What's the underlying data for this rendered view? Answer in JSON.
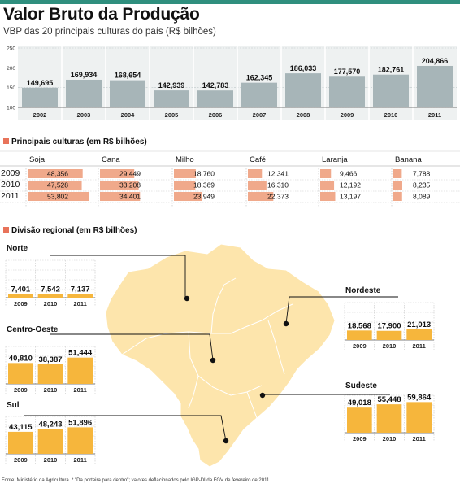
{
  "title": "Valor Bruto da Produção",
  "subtitle": "VBP das 20 principais culturas do país (R$ bilhões)",
  "section_crops": "Principais culturas (em R$ bilhões)",
  "section_regions": "Divisão regional (em R$ bilhões)",
  "footer": "Fonte: Ministério da Agricultura. * \"Da porteira para dentro\"; valores deflacionados pelo IGP-DI da FGV de fevereiro de 2011",
  "colors": {
    "accent_bar": "#2f8f7e",
    "gray_bar": "#a7b5b8",
    "orange_bar": "#f6b63c",
    "salmon_bar": "#f0a98b",
    "map_fill": "#fde5ac",
    "marker": "#e8735a"
  },
  "chart_data": [
    {
      "type": "bar",
      "title": "Valor Bruto da Produção",
      "subtitle": "VBP das 20 principais culturas do país (R$ bilhões)",
      "categories": [
        "2002",
        "2003",
        "2004",
        "2005",
        "2006",
        "2007",
        "2008",
        "2009",
        "2010",
        "2011"
      ],
      "values": [
        149.695,
        169.934,
        168.654,
        142.939,
        142.783,
        162.345,
        186.033,
        177.57,
        182.761,
        204.866
      ],
      "value_labels": [
        "149,695",
        "169,934",
        "168,654",
        "142,939",
        "142,783",
        "162,345",
        "186,033",
        "177,570",
        "182,761",
        "204,866"
      ],
      "y_ticks": [
        "250",
        "200",
        "150",
        "100"
      ],
      "ylim": [
        100,
        250
      ],
      "grid": true
    },
    {
      "type": "bar",
      "title": "Principais culturas (em R$ bilhões)",
      "categories": [
        "2009",
        "2010",
        "2011"
      ],
      "series": [
        {
          "name": "Soja",
          "values": [
            48.356,
            47.528,
            53.802
          ],
          "labels": [
            "48,356",
            "47,528",
            "53,802"
          ]
        },
        {
          "name": "Cana",
          "values": [
            29.449,
            33.208,
            34.401
          ],
          "labels": [
            "29,449",
            "33,208",
            "34,401"
          ]
        },
        {
          "name": "Milho",
          "values": [
            18.76,
            18.369,
            23.949
          ],
          "labels": [
            "18,760",
            "18,369",
            "23,949"
          ]
        },
        {
          "name": "Café",
          "values": [
            12.341,
            16.31,
            22.373
          ],
          "labels": [
            "12,341",
            "16,310",
            "22,373"
          ]
        },
        {
          "name": "Laranja",
          "values": [
            9.466,
            12.192,
            13.197
          ],
          "labels": [
            "9,466",
            "12,192",
            "13,197"
          ]
        },
        {
          "name": "Banana",
          "values": [
            7.788,
            8.235,
            8.089
          ],
          "labels": [
            "7,788",
            "8,235",
            "8,089"
          ]
        }
      ],
      "xlim": [
        0,
        60
      ]
    },
    {
      "type": "bar",
      "title": "Divisão regional (em R$ bilhões)",
      "categories": [
        "2009",
        "2010",
        "2011"
      ],
      "ylim": [
        0,
        70
      ],
      "regions": [
        {
          "name": "Norte",
          "values": [
            7.401,
            7.542,
            7.137
          ],
          "labels": [
            "7,401",
            "7,542",
            "7,137"
          ]
        },
        {
          "name": "Nordeste",
          "values": [
            18.568,
            17.9,
            21.013
          ],
          "labels": [
            "18,568",
            "17,900",
            "21,013"
          ]
        },
        {
          "name": "Centro-Oeste",
          "values": [
            40.81,
            38.387,
            51.444
          ],
          "labels": [
            "40,810",
            "38,387",
            "51,444"
          ]
        },
        {
          "name": "Sudeste",
          "values": [
            49.018,
            55.448,
            59.864
          ],
          "labels": [
            "49,018",
            "55,448",
            "59,864"
          ]
        },
        {
          "name": "Sul",
          "values": [
            43.115,
            48.243,
            51.896
          ],
          "labels": [
            "43,115",
            "48,243",
            "51,896"
          ]
        }
      ]
    }
  ]
}
